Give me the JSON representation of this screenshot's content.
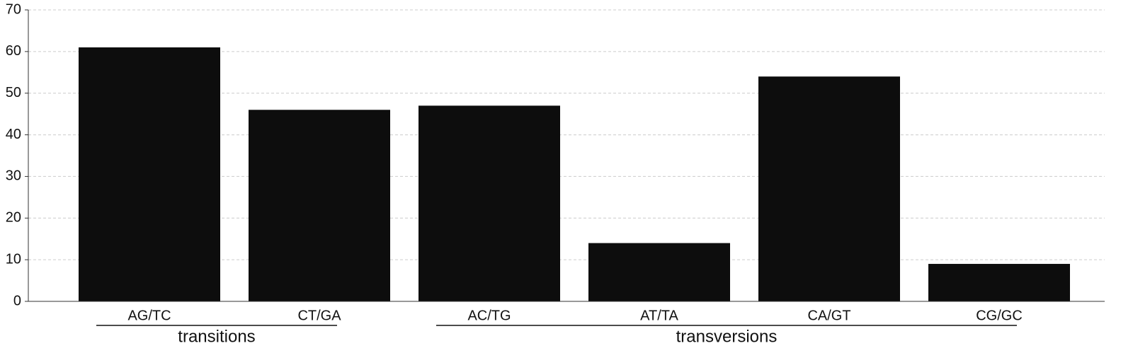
{
  "chart_data": {
    "type": "bar",
    "categories": [
      "AG/TC",
      "CT/GA",
      "AC/TG",
      "AT/TA",
      "CA/GT",
      "CG/GC"
    ],
    "values": [
      61,
      46,
      47,
      14,
      54,
      9
    ],
    "color": "#0d0d0d",
    "ylim": [
      0,
      70
    ],
    "yticks": [
      0,
      10,
      20,
      30,
      40,
      50,
      60,
      70
    ],
    "grid": true,
    "groups": [
      {
        "label": "transitions",
        "categories": [
          "AG/TC",
          "CT/GA"
        ]
      },
      {
        "label": "transversions",
        "categories": [
          "AC/TG",
          "AT/TA",
          "CA/GT",
          "CG/GC"
        ]
      }
    ]
  }
}
